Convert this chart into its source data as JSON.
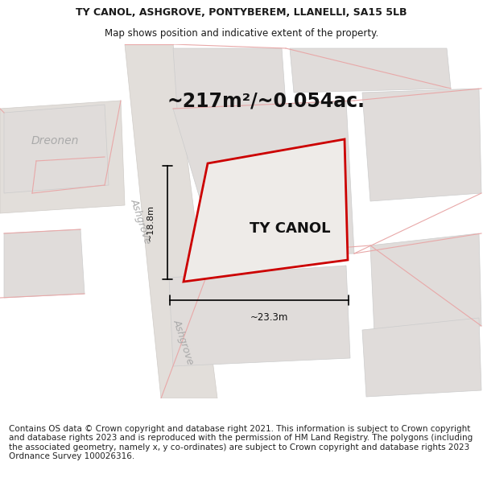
{
  "title_line1": "TY CANOL, ASHGROVE, PONTYBEREM, LLANELLI, SA15 5LB",
  "title_line2": "Map shows position and indicative extent of the property.",
  "area_text": "~217m²/~0.054ac.",
  "property_label": "TY CANOL",
  "dim_horizontal": "~23.3m",
  "dim_vertical": "~18.8m",
  "map_bg": "#f8f8f8",
  "road_fill": "#e2deda",
  "road_edge": "#d0ccc8",
  "property_fill": "#eeebe8",
  "property_border": "#cc0000",
  "building_fill": "#e0dcda",
  "building_edge": "#cccccc",
  "red_line": "#e8a8a8",
  "street_color": "#aaaaaa",
  "copyright_text": "Contains OS data © Crown copyright and database right 2021. This information is subject to Crown copyright and database rights 2023 and is reproduced with the permission of HM Land Registry. The polygons (including the associated geometry, namely x, y co-ordinates) are subject to Crown copyright and database rights 2023 Ordnance Survey 100026316.",
  "title_fontsize": 9.0,
  "area_fontsize": 17,
  "label_fontsize": 13,
  "copyright_fontsize": 7.5,
  "street_fontsize": 9
}
